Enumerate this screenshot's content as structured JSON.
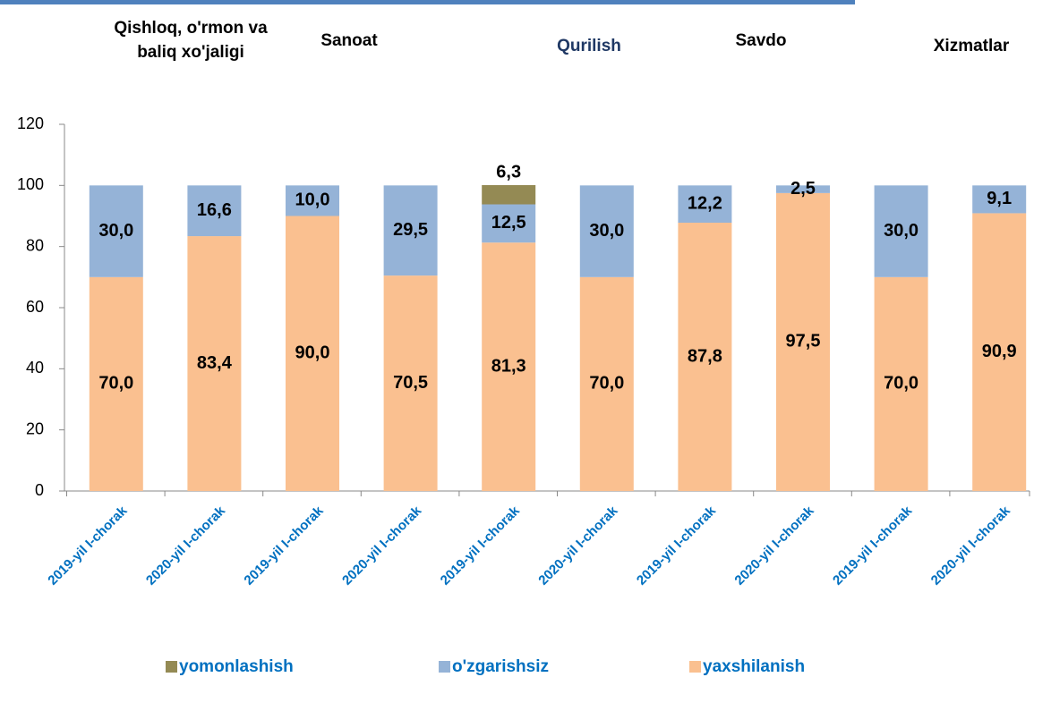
{
  "chart_data": {
    "type": "stacked_bar",
    "groups": [
      {
        "label": "Qishloq, o'rmon va baliq xo'jaligi",
        "color": "#000000"
      },
      {
        "label": "Sanoat",
        "color": "#000000"
      },
      {
        "label": "Qurilish",
        "color": "#1F3864"
      },
      {
        "label": "Savdo",
        "color": "#000000"
      },
      {
        "label": "Xizmatlar",
        "color": "#000000"
      }
    ],
    "categories": [
      "2019-yil I-chorak",
      "2020-yil I-chorak",
      "2019-yil I-chorak",
      "2020-yil I-chorak",
      "2019-yil I-chorak",
      "2020-yil I-chorak",
      "2019-yil I-chorak",
      "2020-yil I-chorak",
      "2019-yil I-chorak",
      "2020-yil I-chorak"
    ],
    "series": [
      {
        "name": "yaxshilanish",
        "color": "#FAC090",
        "values": [
          70.0,
          83.4,
          90.0,
          70.5,
          81.3,
          70.0,
          87.8,
          97.5,
          70.0,
          90.9
        ],
        "value_labels": [
          "70,0",
          "83,4",
          "90,0",
          "70,5",
          "81,3",
          "70,0",
          "87,8",
          "97,5",
          "70,0",
          "90,9"
        ]
      },
      {
        "name": "o'zgarishsiz",
        "color": "#95B3D7",
        "values": [
          30.0,
          16.6,
          10.0,
          29.5,
          12.5,
          30.0,
          12.2,
          2.5,
          30.0,
          9.1
        ],
        "value_labels": [
          "30,0",
          "16,6",
          "10,0",
          "29,5",
          "12,5",
          "30,0",
          "12,2",
          "2,5",
          "30,0",
          "9,1"
        ]
      },
      {
        "name": "yomonlashish",
        "color": "#948A54",
        "values": [
          null,
          null,
          null,
          null,
          6.3,
          null,
          null,
          null,
          null,
          null
        ],
        "value_labels": [
          null,
          null,
          null,
          null,
          "6,3",
          null,
          null,
          null,
          null,
          null
        ]
      }
    ],
    "ylim": [
      0,
      120
    ],
    "yticks": [
      0,
      20,
      40,
      60,
      80,
      100,
      120
    ],
    "grid": false,
    "legend": "bottom"
  }
}
